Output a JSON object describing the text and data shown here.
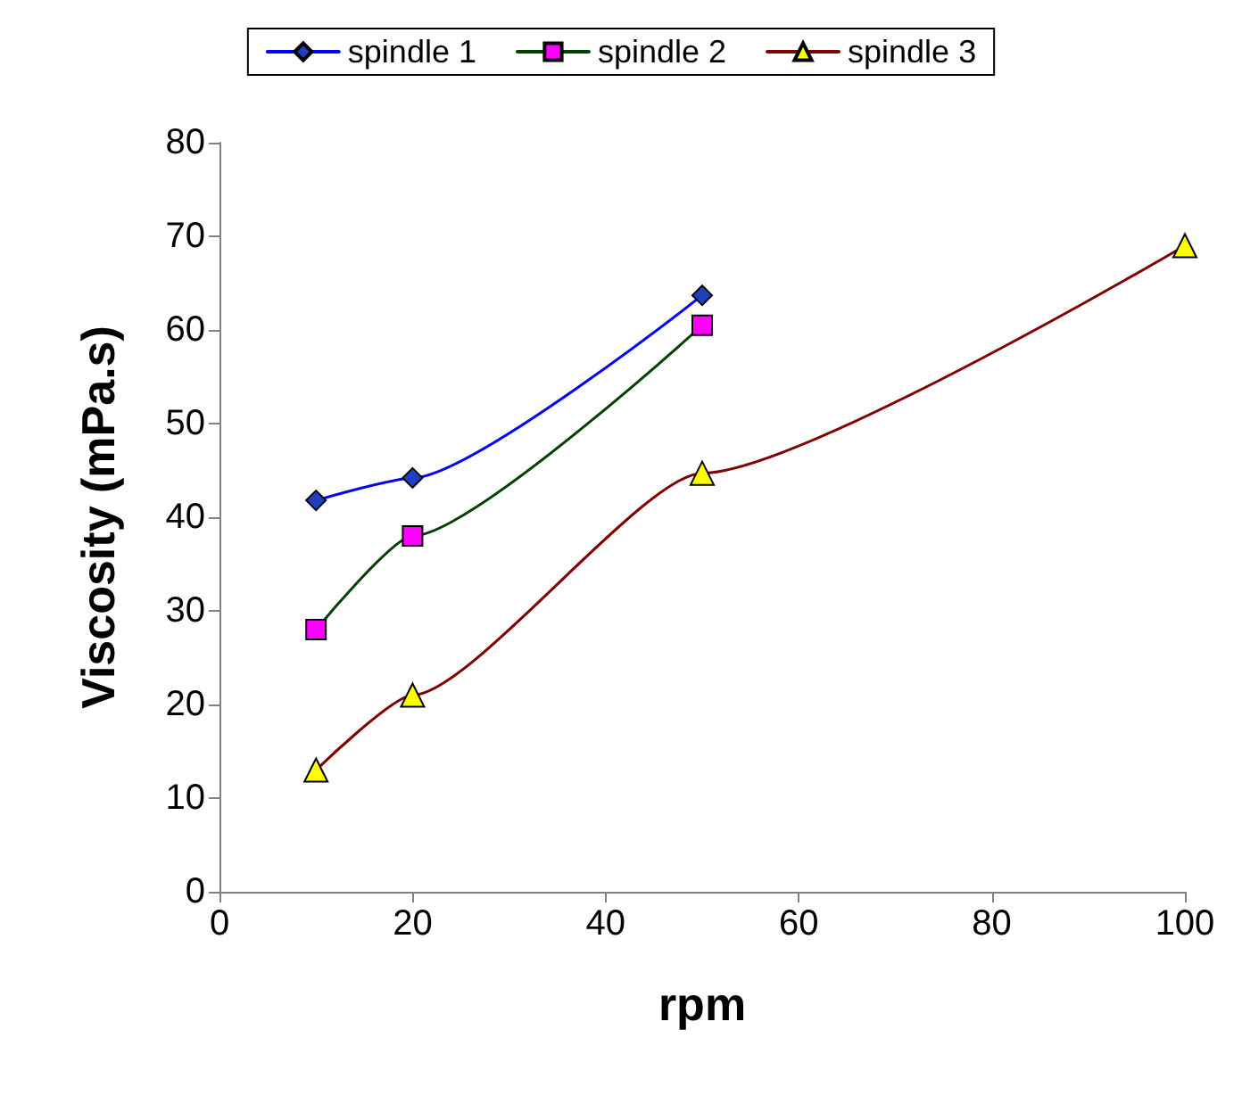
{
  "chart_data": {
    "type": "line",
    "xlabel": "rpm",
    "ylabel": "Viscosity (mPa.s)",
    "xlim": [
      0,
      100
    ],
    "xticks": [
      0,
      20,
      40,
      60,
      80,
      100
    ],
    "ylim": [
      0,
      80
    ],
    "yticks": [
      0,
      10,
      20,
      30,
      40,
      50,
      60,
      70,
      80
    ],
    "grid": false,
    "legend": "top",
    "line_style": "solid",
    "series": [
      {
        "name": "spindle 1",
        "color": "#0000ff",
        "marker": "diamond",
        "colors": [
          "#1f3fbf",
          "#1f3fbf",
          "#1f3fbf"
        ],
        "x": [
          10,
          20,
          50
        ],
        "values": [
          41.8,
          44.2,
          63.7
        ]
      },
      {
        "name": "spindle 2",
        "color": "#004000",
        "marker": "square",
        "colors": [
          "#ff00ff",
          "#ff00ff",
          "#ff00ff"
        ],
        "x": [
          10,
          20,
          50
        ],
        "values": [
          28,
          38,
          60.5
        ]
      },
      {
        "name": "spindle 3",
        "color": "#800000",
        "marker": "triangle",
        "colors": [
          "#ffff00",
          "#ffff00",
          "#ffff00",
          "#ffff00"
        ],
        "x": [
          10,
          20,
          50,
          100
        ],
        "values": [
          13,
          21,
          44.7,
          69
        ]
      }
    ]
  }
}
